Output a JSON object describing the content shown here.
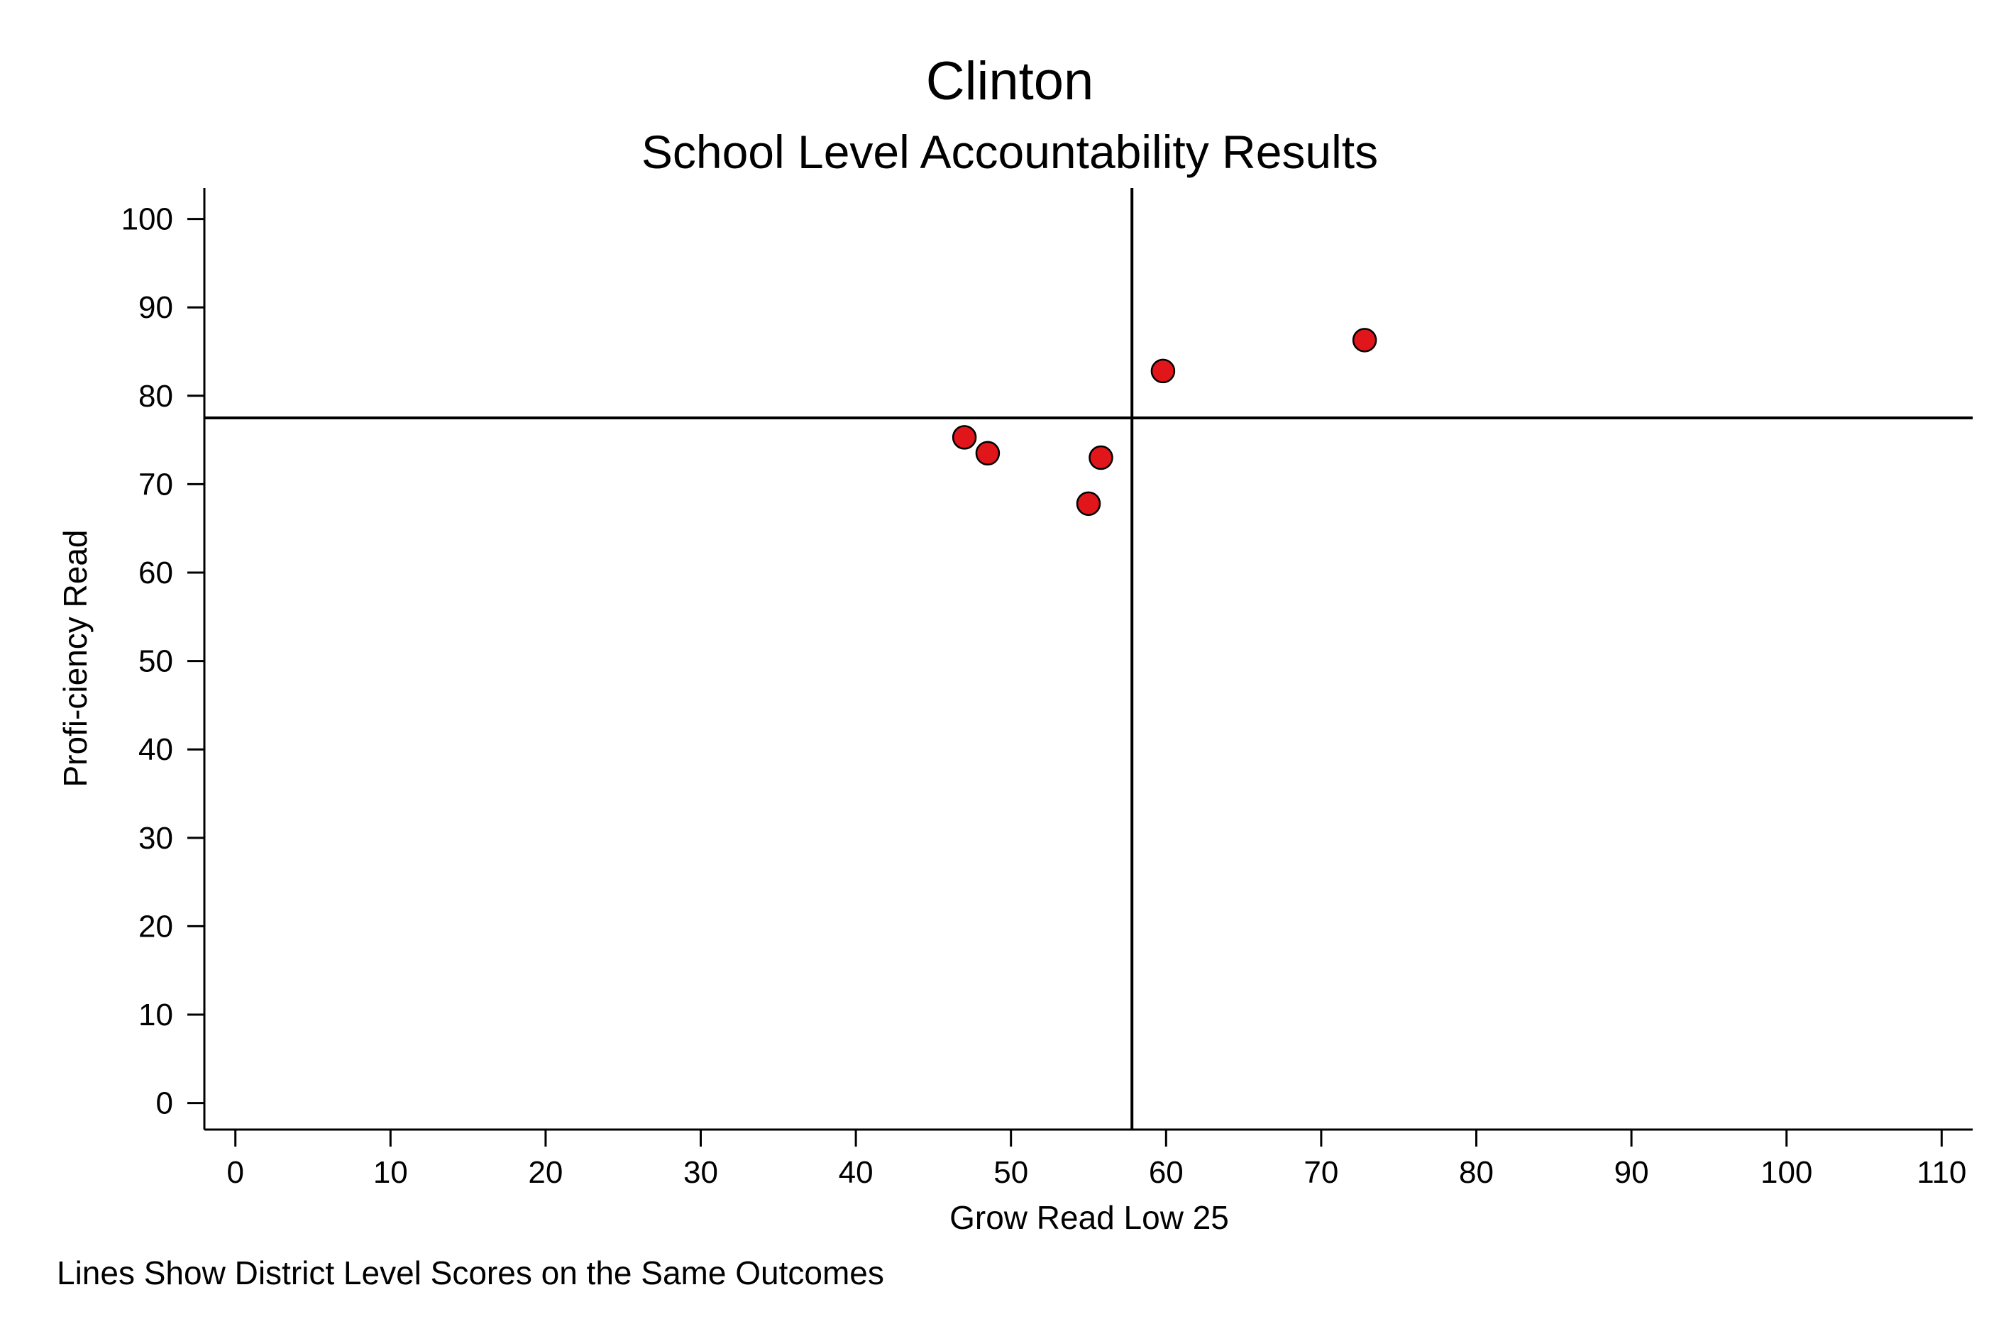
{
  "chart_data": {
    "type": "scatter",
    "title": "Clinton",
    "subtitle": "School Level Accountability Results",
    "xlabel": "Grow Read Low 25",
    "ylabel": "Profi-ciency Read",
    "note": "Lines Show District Level Scores on the Same Outcomes",
    "xlim": [
      -2,
      112
    ],
    "ylim": [
      -3,
      103.5
    ],
    "x_ticks": [
      0,
      10,
      20,
      30,
      40,
      50,
      60,
      70,
      80,
      90,
      100,
      110
    ],
    "y_ticks": [
      0,
      10,
      20,
      30,
      40,
      50,
      60,
      70,
      80,
      90,
      100
    ],
    "grid": false,
    "reference_lines": {
      "x": 57.8,
      "y": 77.5
    },
    "marker_color": "#e0161b",
    "points": [
      {
        "x": 72.8,
        "y": 86.3
      },
      {
        "x": 59.8,
        "y": 82.8
      },
      {
        "x": 47.0,
        "y": 75.3
      },
      {
        "x": 48.5,
        "y": 73.5
      },
      {
        "x": 55.8,
        "y": 73.0
      },
      {
        "x": 55.0,
        "y": 67.8
      }
    ]
  }
}
